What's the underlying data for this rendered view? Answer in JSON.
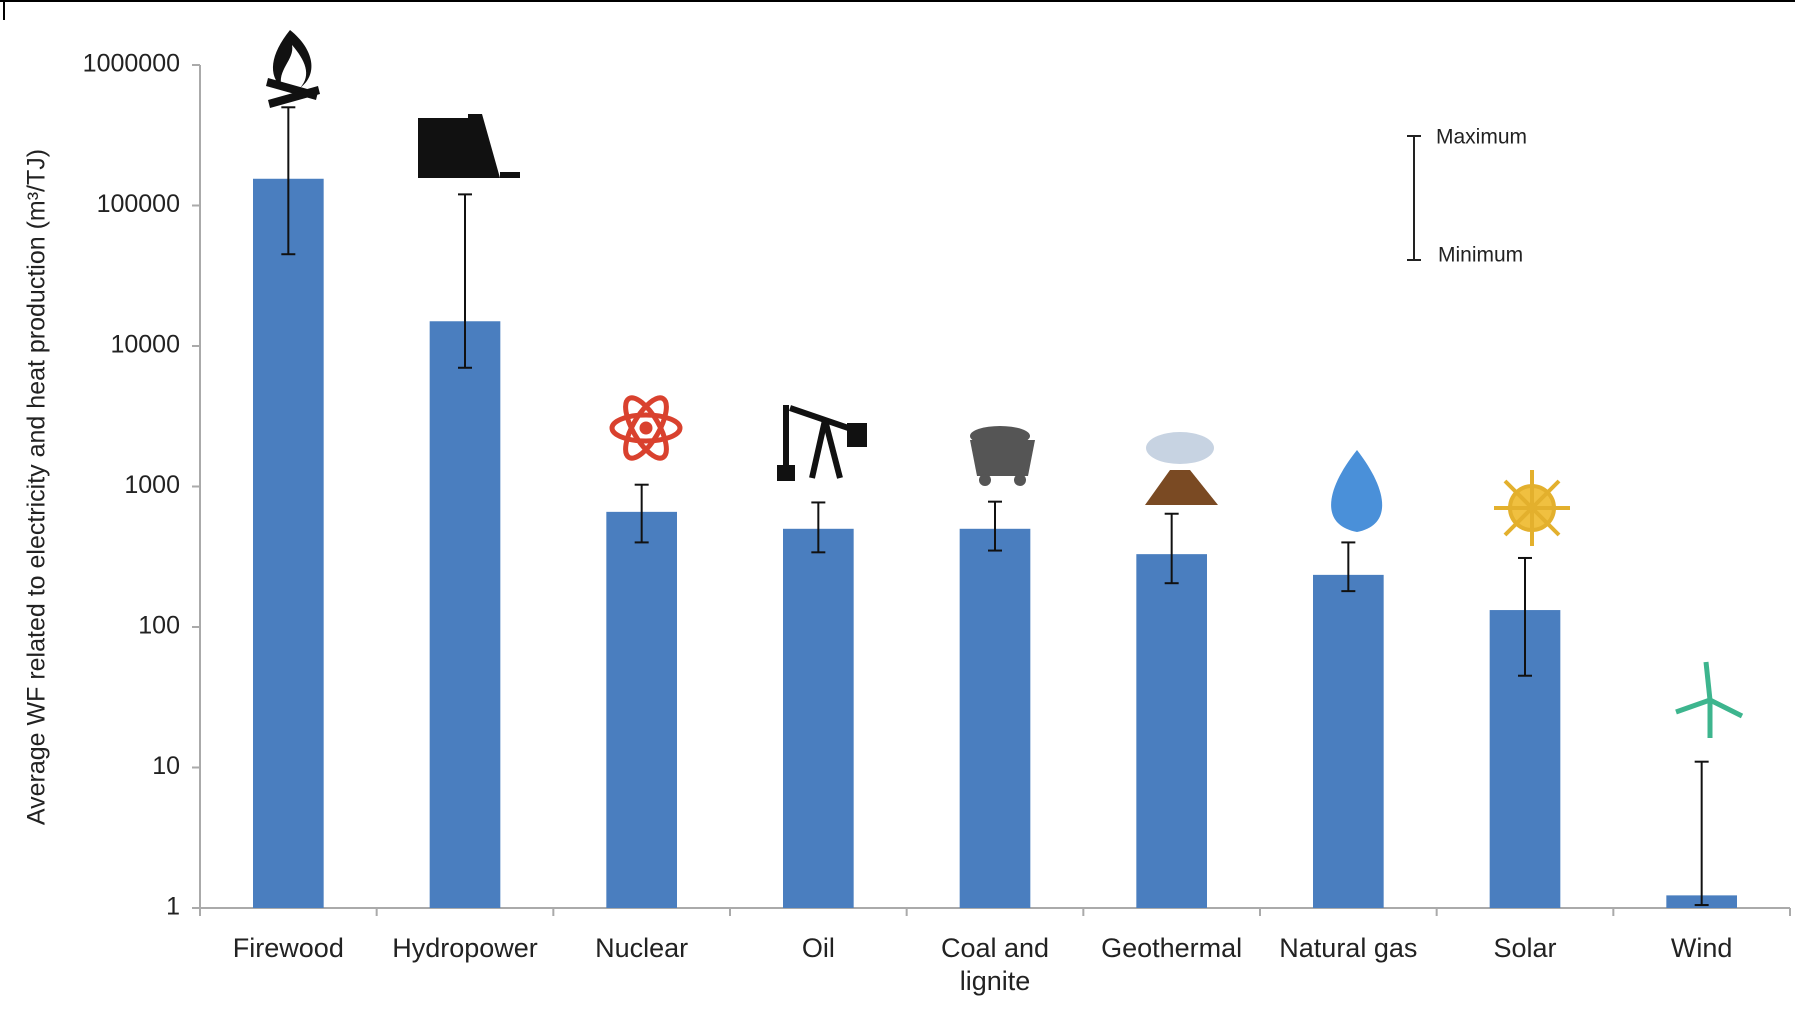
{
  "chart_data": {
    "type": "bar",
    "y_label": "Average WF related to electricity and heat production (m³/TJ)",
    "categories": [
      "Firewood",
      "Hydropower",
      "Nuclear",
      "Oil",
      "Coal and lignite",
      "Geothermal",
      "Natural gas",
      "Solar",
      "Wind"
    ],
    "series": [
      {
        "color": "#4a7ebf",
        "values": [
          155000,
          15000,
          660,
          500,
          500,
          330,
          235,
          132,
          1.23
        ],
        "min": [
          45000,
          7000,
          400,
          340,
          350,
          205,
          180,
          45,
          1.05
        ],
        "max": [
          500000,
          120000,
          1030,
          770,
          780,
          640,
          400,
          310,
          11
        ]
      }
    ],
    "ylim": [
      1,
      1000000
    ],
    "yticks": [
      1,
      10,
      100,
      1000,
      10000,
      100000,
      1000000
    ],
    "log_scale": true,
    "grid": false,
    "legend": {
      "max_label": "Maximum",
      "min_label": "Minimum"
    }
  }
}
